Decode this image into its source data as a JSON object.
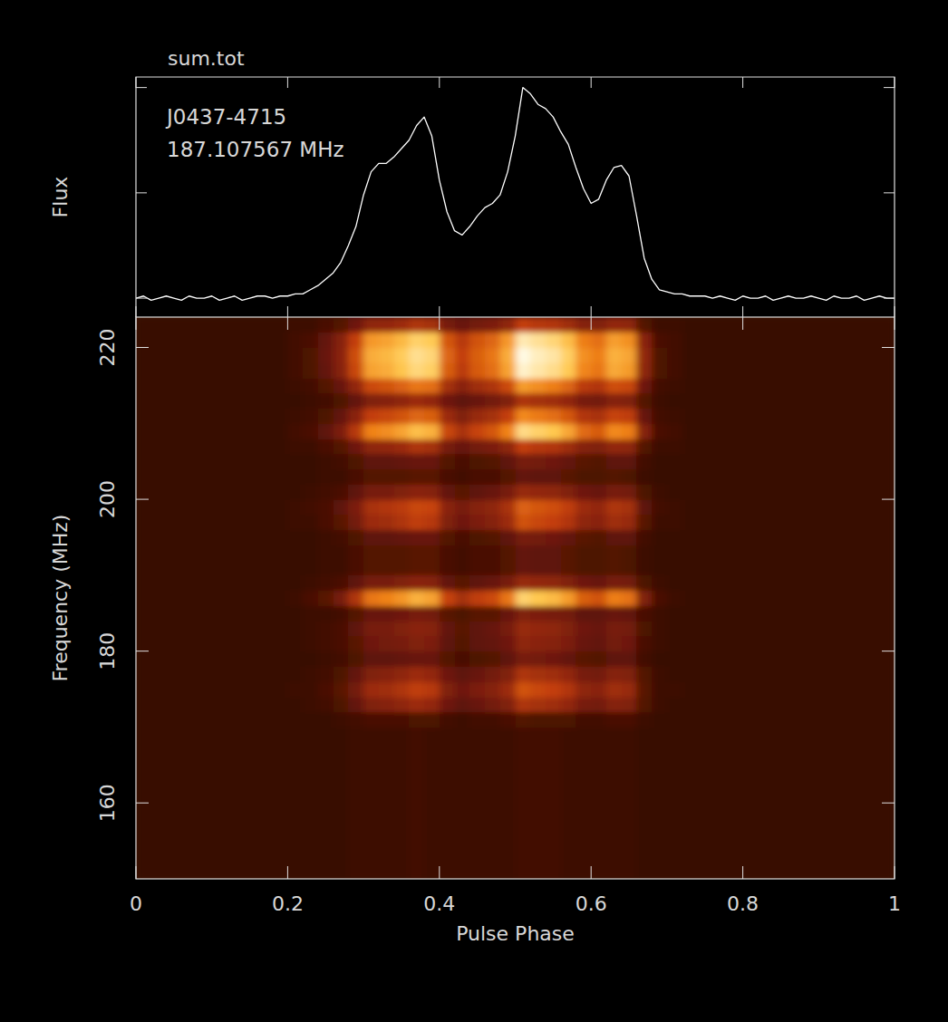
{
  "chart_data": [
    {
      "type": "line",
      "title": "sum.tot",
      "annotations": [
        "J0437-4715",
        "187.107567 MHz"
      ],
      "y_label": "Flux",
      "x": [
        0,
        0.01,
        0.02,
        0.03,
        0.04,
        0.05,
        0.06,
        0.07,
        0.08,
        0.09,
        0.1,
        0.11,
        0.12,
        0.13,
        0.14,
        0.15,
        0.16,
        0.17,
        0.18,
        0.19,
        0.2,
        0.21,
        0.22,
        0.23,
        0.24,
        0.25,
        0.26,
        0.27,
        0.28,
        0.29,
        0.3,
        0.31,
        0.32,
        0.33,
        0.34,
        0.35,
        0.36,
        0.37,
        0.38,
        0.39,
        0.4,
        0.41,
        0.42,
        0.43,
        0.44,
        0.45,
        0.46,
        0.47,
        0.48,
        0.49,
        0.5,
        0.51,
        0.52,
        0.53,
        0.54,
        0.55,
        0.56,
        0.57,
        0.58,
        0.59,
        0.6,
        0.61,
        0.62,
        0.63,
        0.64,
        0.65,
        0.66,
        0.67,
        0.68,
        0.69,
        0.7,
        0.71,
        0.72,
        0.73,
        0.74,
        0.75,
        0.76,
        0.77,
        0.78,
        0.79,
        0.8,
        0.81,
        0.82,
        0.83,
        0.84,
        0.85,
        0.86,
        0.87,
        0.88,
        0.89,
        0.9,
        0.91,
        0.92,
        0.93,
        0.94,
        0.95,
        0.96,
        0.97,
        0.98,
        0.99,
        1
      ],
      "values": [
        0,
        0.01,
        -0.01,
        0,
        0.01,
        0,
        -0.01,
        0.01,
        0,
        0,
        0.01,
        -0.01,
        0,
        0.01,
        -0.01,
        0,
        0.01,
        0.01,
        0,
        0.01,
        0.01,
        0.02,
        0.02,
        0.04,
        0.06,
        0.09,
        0.12,
        0.17,
        0.25,
        0.34,
        0.49,
        0.6,
        0.64,
        0.64,
        0.67,
        0.71,
        0.75,
        0.82,
        0.86,
        0.77,
        0.56,
        0.41,
        0.32,
        0.3,
        0.34,
        0.39,
        0.43,
        0.45,
        0.49,
        0.6,
        0.77,
        1,
        0.97,
        0.92,
        0.9,
        0.86,
        0.79,
        0.73,
        0.62,
        0.52,
        0.45,
        0.47,
        0.56,
        0.62,
        0.63,
        0.58,
        0.39,
        0.19,
        0.09,
        0.04,
        0.03,
        0.02,
        0.02,
        0.01,
        0.01,
        0.01,
        0,
        0.01,
        0,
        -0.01,
        0.01,
        0,
        0,
        0.01,
        -0.01,
        0,
        0.01,
        0,
        0,
        0.01,
        0,
        -0.01,
        0.01,
        0,
        0,
        0.01,
        -0.01,
        0,
        0.01,
        0,
        0
      ],
      "color": "#ffffff",
      "xlim": [
        0,
        1
      ],
      "ylim": [
        -0.09,
        1.05
      ],
      "xticks": [
        0,
        0.2,
        0.4,
        0.6,
        0.8,
        1
      ],
      "yticks": [
        0,
        0.5,
        1
      ],
      "tick_labels": false
    },
    {
      "type": "heatmap",
      "x_label": "Pulse Phase",
      "y_label": "Frequency (MHz)",
      "x_edges": [
        0,
        0.2,
        0.22,
        0.24,
        0.26,
        0.28,
        0.3,
        0.32,
        0.34,
        0.36,
        0.38,
        0.4,
        0.42,
        0.44,
        0.46,
        0.48,
        0.5,
        0.52,
        0.54,
        0.56,
        0.58,
        0.6,
        0.62,
        0.64,
        0.66,
        0.68,
        0.7,
        0.72,
        1
      ],
      "y_edges": [
        150,
        170,
        172,
        174,
        176,
        178,
        180,
        182,
        184,
        186,
        188,
        190,
        192,
        194,
        196,
        198,
        200,
        202,
        204,
        206,
        208,
        210,
        212,
        214,
        216,
        218,
        220,
        222,
        224
      ],
      "cells": [
        [
          4,
          4,
          4,
          4,
          4,
          5,
          5,
          5,
          5,
          6,
          5,
          5,
          5,
          5,
          5,
          5,
          6,
          6,
          6,
          5,
          5,
          5,
          5,
          5,
          4,
          4,
          4,
          4
        ],
        [
          4,
          4,
          4,
          4,
          5,
          6,
          7,
          7,
          7,
          8,
          8,
          6,
          5,
          6,
          6,
          7,
          9,
          8,
          8,
          8,
          6,
          6,
          7,
          7,
          5,
          4,
          4,
          4
        ],
        [
          4,
          4,
          5,
          6,
          8,
          12,
          18,
          19,
          21,
          24,
          22,
          14,
          11,
          13,
          15,
          18,
          28,
          26,
          25,
          22,
          16,
          15,
          19,
          18,
          9,
          5,
          4,
          4
        ],
        [
          4,
          5,
          5,
          7,
          10,
          15,
          24,
          25,
          28,
          32,
          30,
          18,
          14,
          17,
          19,
          24,
          38,
          35,
          33,
          29,
          21,
          20,
          25,
          23,
          10,
          5,
          5,
          4
        ],
        [
          4,
          4,
          5,
          6,
          8,
          12,
          18,
          19,
          21,
          24,
          22,
          14,
          11,
          13,
          15,
          18,
          28,
          26,
          25,
          22,
          16,
          15,
          19,
          18,
          9,
          5,
          4,
          4
        ],
        [
          4,
          4,
          4,
          5,
          6,
          8,
          11,
          11,
          12,
          13,
          13,
          9,
          7,
          8,
          9,
          11,
          16,
          15,
          14,
          12,
          10,
          9,
          11,
          11,
          6,
          4,
          4,
          4
        ],
        [
          4,
          4,
          5,
          6,
          7,
          10,
          14,
          15,
          16,
          18,
          17,
          11,
          9,
          11,
          12,
          14,
          21,
          20,
          19,
          17,
          13,
          12,
          15,
          14,
          7,
          5,
          4,
          4
        ],
        [
          4,
          4,
          5,
          6,
          7,
          11,
          16,
          16,
          18,
          20,
          19,
          12,
          10,
          11,
          13,
          16,
          23,
          22,
          21,
          18,
          14,
          13,
          16,
          15,
          8,
          5,
          4,
          4
        ],
        [
          4,
          4,
          5,
          5,
          6,
          9,
          13,
          13,
          14,
          16,
          15,
          10,
          8,
          10,
          10,
          13,
          18,
          17,
          16,
          15,
          11,
          11,
          13,
          12,
          7,
          5,
          4,
          4
        ],
        [
          4,
          5,
          7,
          10,
          16,
          28,
          47,
          50,
          55,
          63,
          59,
          34,
          26,
          32,
          36,
          47,
          76,
          70,
          66,
          57,
          41,
          38,
          49,
          46,
          18,
          7,
          5,
          4
        ],
        [
          4,
          4,
          5,
          6,
          7,
          11,
          16,
          16,
          18,
          20,
          19,
          12,
          10,
          11,
          13,
          16,
          23,
          22,
          21,
          18,
          14,
          13,
          16,
          15,
          8,
          5,
          4,
          4
        ],
        [
          4,
          4,
          4,
          5,
          5,
          7,
          9,
          9,
          9,
          10,
          10,
          7,
          6,
          7,
          7,
          9,
          12,
          11,
          11,
          10,
          8,
          8,
          9,
          8,
          5,
          4,
          4,
          4
        ],
        [
          4,
          4,
          4,
          5,
          5,
          7,
          9,
          9,
          9,
          10,
          10,
          7,
          6,
          7,
          7,
          9,
          12,
          11,
          11,
          10,
          8,
          8,
          9,
          8,
          5,
          4,
          4,
          4
        ],
        [
          4,
          4,
          4,
          5,
          6,
          8,
          11,
          11,
          12,
          13,
          13,
          9,
          7,
          8,
          9,
          11,
          16,
          15,
          14,
          12,
          10,
          9,
          11,
          11,
          6,
          4,
          4,
          4
        ],
        [
          4,
          5,
          5,
          7,
          10,
          15,
          24,
          25,
          28,
          32,
          30,
          18,
          14,
          17,
          19,
          24,
          38,
          35,
          33,
          29,
          21,
          20,
          25,
          23,
          10,
          5,
          5,
          4
        ],
        [
          4,
          5,
          6,
          7,
          11,
          17,
          27,
          29,
          31,
          35,
          34,
          20,
          16,
          19,
          21,
          27,
          42,
          39,
          37,
          32,
          24,
          22,
          28,
          26,
          11,
          6,
          5,
          4
        ],
        [
          4,
          4,
          5,
          6,
          7,
          11,
          16,
          16,
          18,
          20,
          19,
          12,
          10,
          11,
          13,
          16,
          23,
          22,
          21,
          18,
          14,
          13,
          16,
          15,
          8,
          5,
          4,
          4
        ],
        [
          4,
          4,
          4,
          5,
          5,
          7,
          9,
          9,
          9,
          10,
          10,
          7,
          6,
          7,
          7,
          9,
          12,
          11,
          11,
          10,
          8,
          8,
          9,
          8,
          5,
          4,
          4,
          4
        ],
        [
          4,
          4,
          4,
          5,
          6,
          8,
          11,
          11,
          12,
          13,
          13,
          9,
          7,
          8,
          9,
          11,
          16,
          15,
          14,
          12,
          10,
          9,
          11,
          11,
          6,
          4,
          4,
          4
        ],
        [
          4,
          5,
          5,
          7,
          9,
          14,
          21,
          22,
          24,
          28,
          26,
          16,
          13,
          15,
          17,
          21,
          33,
          30,
          29,
          25,
          19,
          18,
          22,
          21,
          9,
          5,
          5,
          4
        ],
        [
          4,
          6,
          7,
          11,
          17,
          30,
          50,
          53,
          59,
          67,
          63,
          35,
          27,
          34,
          39,
          50,
          81,
          75,
          70,
          60,
          44,
          40,
          52,
          49,
          19,
          7,
          6,
          4
        ],
        [
          4,
          5,
          6,
          8,
          12,
          20,
          33,
          35,
          38,
          43,
          41,
          24,
          18,
          23,
          26,
          33,
          52,
          48,
          45,
          39,
          29,
          27,
          34,
          32,
          13,
          6,
          5,
          4
        ],
        [
          4,
          4,
          5,
          6,
          8,
          12,
          18,
          19,
          21,
          24,
          22,
          14,
          11,
          13,
          15,
          18,
          28,
          26,
          25,
          22,
          16,
          15,
          19,
          18,
          9,
          5,
          4,
          4
        ],
        [
          4,
          5,
          6,
          9,
          13,
          22,
          36,
          38,
          42,
          47,
          45,
          26,
          20,
          25,
          28,
          36,
          57,
          53,
          49,
          43,
          31,
          29,
          37,
          35,
          14,
          6,
          5,
          4
        ],
        [
          4,
          6,
          8,
          12,
          19,
          35,
          59,
          62,
          69,
          79,
          74,
          41,
          31,
          40,
          45,
          59,
          95,
          88,
          82,
          71,
          51,
          47,
          61,
          57,
          21,
          8,
          6,
          4
        ],
        [
          4,
          6,
          8,
          13,
          20,
          37,
          62,
          65,
          72,
          83,
          78,
          43,
          33,
          41,
          47,
          62,
          100,
          92,
          87,
          74,
          54,
          49,
          63,
          60,
          22,
          8,
          6,
          4
        ],
        [
          4,
          6,
          7,
          12,
          19,
          33,
          56,
          59,
          65,
          75,
          71,
          39,
          30,
          38,
          43,
          56,
          90,
          84,
          78,
          67,
          49,
          45,
          58,
          54,
          20,
          7,
          6,
          4
        ],
        [
          4,
          5,
          5,
          7,
          9,
          14,
          21,
          22,
          24,
          28,
          26,
          16,
          13,
          15,
          17,
          21,
          33,
          30,
          29,
          25,
          19,
          18,
          22,
          21,
          9,
          5,
          5,
          4
        ]
      ],
      "zlim": [
        0,
        100
      ],
      "xlim": [
        0,
        1
      ],
      "ylim": [
        150,
        224
      ],
      "xticks": [
        0,
        0.2,
        0.4,
        0.6,
        0.8,
        1
      ],
      "yticks": [
        160,
        180,
        200,
        220
      ]
    }
  ]
}
